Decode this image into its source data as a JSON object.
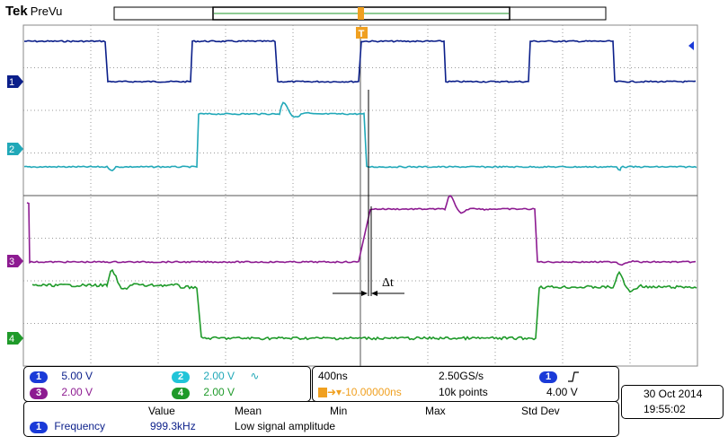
{
  "header": {
    "brand": "Tek",
    "mode": "PreVu",
    "trigger_marker": "T"
  },
  "colors": {
    "ch1": "#0b1f8a",
    "ch2": "#21a8b8",
    "ch3": "#8d1b91",
    "ch4": "#1f9a2a",
    "trigger": "#f0a020"
  },
  "channels": [
    {
      "id": "1",
      "label": "1",
      "scale": "5.00 V"
    },
    {
      "id": "2",
      "label": "2",
      "scale": "2.00 V",
      "bw_icon": "∿"
    },
    {
      "id": "3",
      "label": "3",
      "scale": "2.00 V"
    },
    {
      "id": "4",
      "label": "4",
      "scale": "2.00 V"
    }
  ],
  "annotation": {
    "label": "Δt"
  },
  "timebase": {
    "time_div": "400ns",
    "sample_rate": "2.50GS/s",
    "trigger_delay": "-10.00000ns",
    "record_length": "10k points",
    "trigger_source": "1",
    "trigger_slope_icon": "rising-edge",
    "trigger_level": "4.00 V"
  },
  "datetime": {
    "date": "30 Oct  2014",
    "time": "19:55:02"
  },
  "measurements": {
    "headers": [
      "Value",
      "Mean",
      "Min",
      "Max",
      "Std Dev"
    ],
    "rows": [
      {
        "channel": "1",
        "name": "Frequency",
        "value": "999.3kHz",
        "note": "Low signal amplitude"
      }
    ]
  }
}
